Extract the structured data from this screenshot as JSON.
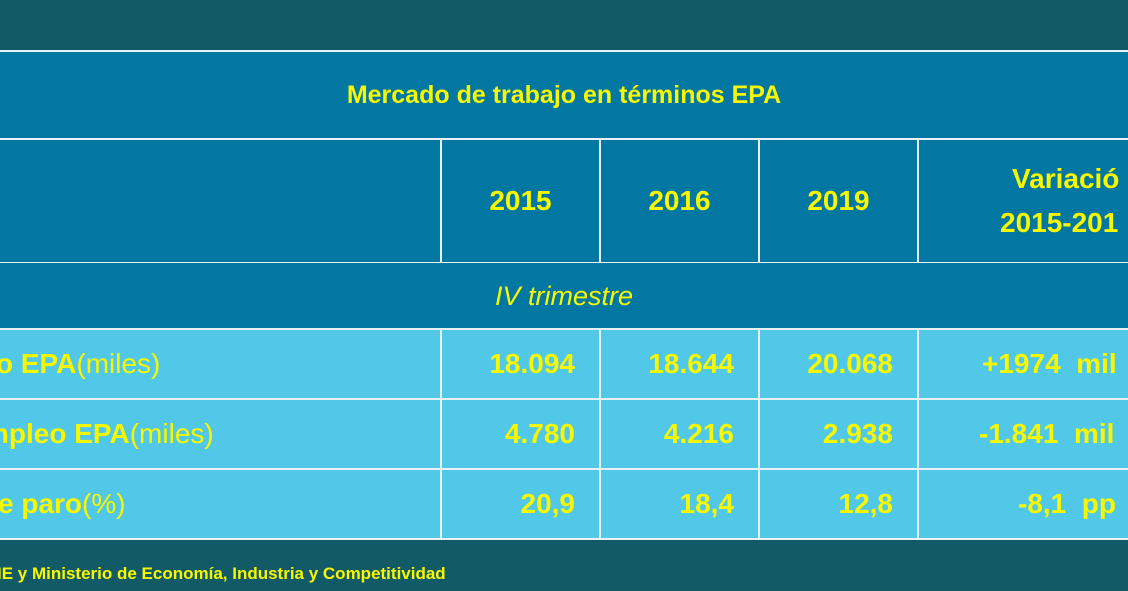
{
  "table": {
    "title": "Mercado de trabajo en términos EPA",
    "headers": [
      "2015",
      "2016",
      "2019"
    ],
    "variation_header": [
      "Variació",
      "2015-201"
    ],
    "subheader": "IV trimestre",
    "rows": [
      {
        "label": "o EPA",
        "unit": " (miles)",
        "values": [
          "18.094",
          "18.644",
          "20.068"
        ],
        "variation": "+1974  mil"
      },
      {
        "label": "mpleo EPA",
        "unit": " (miles)",
        "values": [
          "4.780",
          "4.216",
          "2.938"
        ],
        "variation": "-1.841  mil"
      },
      {
        "label": "e paro",
        "unit": " (%)",
        "values": [
          "20,9",
          "18,4",
          "12,8"
        ],
        "variation": "-8,1  pp"
      }
    ]
  },
  "source": "IE y Ministerio de Economía, Industria y Competitividad",
  "colors": {
    "background": "#125a66",
    "header": "#0277a1",
    "rows": "#51c8e7",
    "text": "#f7f700"
  }
}
